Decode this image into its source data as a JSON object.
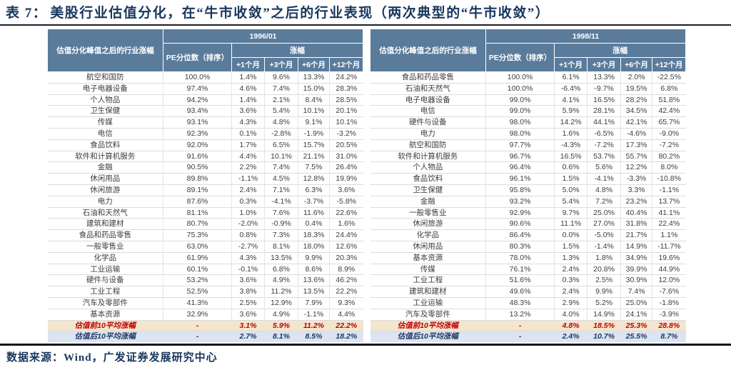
{
  "title": {
    "prefix": "表 7：",
    "text": "美股行业估值分化，在“牛市收敛”之后的行业表现（两次典型的“牛市收敛”）"
  },
  "footer": {
    "source_label": "数据来源：",
    "source_text": "Wind，广发证券发展研究中心"
  },
  "colors": {
    "header_bg": "#5b7b9b",
    "summary_top_bg": "#f3e6cd",
    "summary_top_text": "#c00000",
    "summary_bottom_bg": "#dbe4f2",
    "summary_bottom_text": "#1f3864",
    "title_text": "#17365d"
  },
  "tables": [
    {
      "period": "1996/01",
      "col_industry": "估值分化峰值之后的行业涨幅",
      "col_pe": "PE分位数（排序）",
      "col_change": "涨幅",
      "months": [
        "+1个月",
        "+3个月",
        "+6个月",
        "+12个月"
      ],
      "rows": [
        {
          "industry": "航空和国防",
          "pe": "100.0%",
          "values": [
            "1.4%",
            "9.6%",
            "13.3%",
            "24.2%"
          ]
        },
        {
          "industry": "电子电器设备",
          "pe": "97.4%",
          "values": [
            "4.6%",
            "7.4%",
            "15.0%",
            "28.3%"
          ]
        },
        {
          "industry": "个人物品",
          "pe": "94.2%",
          "values": [
            "1.4%",
            "2.1%",
            "8.4%",
            "28.5%"
          ]
        },
        {
          "industry": "卫生保健",
          "pe": "93.4%",
          "values": [
            "3.6%",
            "5.4%",
            "10.1%",
            "20.1%"
          ]
        },
        {
          "industry": "传媒",
          "pe": "93.1%",
          "values": [
            "4.3%",
            "4.8%",
            "9.1%",
            "10.1%"
          ]
        },
        {
          "industry": "电信",
          "pe": "92.3%",
          "values": [
            "0.1%",
            "-2.8%",
            "-1.9%",
            "-3.2%"
          ]
        },
        {
          "industry": "食品饮料",
          "pe": "92.0%",
          "values": [
            "1.7%",
            "6.5%",
            "15.7%",
            "20.5%"
          ]
        },
        {
          "industry": "软件和计算机服务",
          "pe": "91.6%",
          "values": [
            "4.4%",
            "10.1%",
            "21.1%",
            "31.0%"
          ]
        },
        {
          "industry": "金融",
          "pe": "90.5%",
          "values": [
            "2.2%",
            "7.4%",
            "7.5%",
            "26.4%"
          ]
        },
        {
          "industry": "休闲用品",
          "pe": "89.8%",
          "values": [
            "-1.1%",
            "4.5%",
            "12.8%",
            "19.9%"
          ]
        },
        {
          "industry": "休闲旅游",
          "pe": "89.1%",
          "values": [
            "2.4%",
            "7.1%",
            "6.3%",
            "3.6%"
          ]
        },
        {
          "industry": "电力",
          "pe": "87.6%",
          "values": [
            "0.3%",
            "-4.1%",
            "-3.7%",
            "-5.8%"
          ]
        },
        {
          "industry": "石油和天然气",
          "pe": "81.1%",
          "values": [
            "1.0%",
            "7.6%",
            "11.6%",
            "22.6%"
          ]
        },
        {
          "industry": "建筑和建材",
          "pe": "80.7%",
          "values": [
            "-2.0%",
            "-0.9%",
            "0.4%",
            "1.6%"
          ]
        },
        {
          "industry": "食品和药品零售",
          "pe": "75.3%",
          "values": [
            "0.8%",
            "7.3%",
            "18.3%",
            "24.4%"
          ]
        },
        {
          "industry": "一般零售业",
          "pe": "63.0%",
          "values": [
            "-2.7%",
            "8.1%",
            "18.0%",
            "12.6%"
          ]
        },
        {
          "industry": "化学品",
          "pe": "61.9%",
          "values": [
            "4.3%",
            "13.5%",
            "9.9%",
            "20.3%"
          ]
        },
        {
          "industry": "工业运输",
          "pe": "60.1%",
          "values": [
            "-0.1%",
            "6.8%",
            "8.6%",
            "8.9%"
          ]
        },
        {
          "industry": "硬件与设备",
          "pe": "53.2%",
          "values": [
            "3.6%",
            "4.9%",
            "13.6%",
            "46.2%"
          ]
        },
        {
          "industry": "工业工程",
          "pe": "52.5%",
          "values": [
            "3.8%",
            "11.2%",
            "13.5%",
            "22.2%"
          ]
        },
        {
          "industry": "汽车及零部件",
          "pe": "41.3%",
          "values": [
            "2.5%",
            "12.9%",
            "7.9%",
            "9.3%"
          ]
        },
        {
          "industry": "基本资源",
          "pe": "32.9%",
          "values": [
            "3.6%",
            "4.9%",
            "-1.1%",
            "4.4%"
          ]
        }
      ],
      "summary": [
        {
          "label": "估值前10平均涨幅",
          "pe": "-",
          "values": [
            "3.1%",
            "5.9%",
            "11.2%",
            "22.2%"
          ],
          "style": "top"
        },
        {
          "label": "估值后10平均涨幅",
          "pe": "-",
          "values": [
            "2.7%",
            "8.1%",
            "8.5%",
            "18.2%"
          ],
          "style": "bottom"
        }
      ]
    },
    {
      "period": "1998/11",
      "col_industry": "估值分化峰值之后的行业涨幅",
      "col_pe": "PE分位数（排序）",
      "col_change": "涨幅",
      "months": [
        "+1个月",
        "+3个月",
        "+6个月",
        "+12个月"
      ],
      "rows": [
        {
          "industry": "食品和药品零售",
          "pe": "100.0%",
          "values": [
            "6.1%",
            "13.3%",
            "2.0%",
            "-22.5%"
          ]
        },
        {
          "industry": "石油和天然气",
          "pe": "100.0%",
          "values": [
            "-6.4%",
            "-9.7%",
            "19.5%",
            "6.8%"
          ]
        },
        {
          "industry": "电子电器设备",
          "pe": "99.0%",
          "values": [
            "4.1%",
            "16.5%",
            "28.2%",
            "51.8%"
          ]
        },
        {
          "industry": "电信",
          "pe": "99.0%",
          "values": [
            "5.9%",
            "28.1%",
            "34.5%",
            "42.4%"
          ]
        },
        {
          "industry": "硬件与设备",
          "pe": "98.0%",
          "values": [
            "14.2%",
            "44.1%",
            "42.1%",
            "65.7%"
          ]
        },
        {
          "industry": "电力",
          "pe": "98.0%",
          "values": [
            "1.6%",
            "-6.5%",
            "-4.6%",
            "-9.0%"
          ]
        },
        {
          "industry": "航空和国防",
          "pe": "97.7%",
          "values": [
            "-4.3%",
            "-7.2%",
            "17.3%",
            "-7.2%"
          ]
        },
        {
          "industry": "软件和计算机服务",
          "pe": "96.7%",
          "values": [
            "16.5%",
            "53.7%",
            "55.7%",
            "80.2%"
          ]
        },
        {
          "industry": "个人物品",
          "pe": "96.4%",
          "values": [
            "0.6%",
            "5.6%",
            "12.2%",
            "8.0%"
          ]
        },
        {
          "industry": "食品饮料",
          "pe": "96.1%",
          "values": [
            "1.5%",
            "-4.1%",
            "-3.3%",
            "-10.8%"
          ]
        },
        {
          "industry": "卫生保健",
          "pe": "95.8%",
          "values": [
            "5.0%",
            "4.8%",
            "3.3%",
            "-1.1%"
          ]
        },
        {
          "industry": "金融",
          "pe": "93.2%",
          "values": [
            "5.4%",
            "7.2%",
            "23.2%",
            "13.7%"
          ]
        },
        {
          "industry": "一般零售业",
          "pe": "92.9%",
          "values": [
            "9.7%",
            "25.0%",
            "40.4%",
            "41.1%"
          ]
        },
        {
          "industry": "休闲旅游",
          "pe": "90.6%",
          "values": [
            "11.1%",
            "27.0%",
            "31.8%",
            "22.4%"
          ]
        },
        {
          "industry": "化学品",
          "pe": "86.4%",
          "values": [
            "0.0%",
            "-5.0%",
            "21.7%",
            "1.1%"
          ]
        },
        {
          "industry": "休闲用品",
          "pe": "80.3%",
          "values": [
            "1.5%",
            "-1.4%",
            "14.9%",
            "-11.7%"
          ]
        },
        {
          "industry": "基本资源",
          "pe": "78.0%",
          "values": [
            "1.3%",
            "1.8%",
            "34.9%",
            "19.6%"
          ]
        },
        {
          "industry": "传媒",
          "pe": "76.1%",
          "values": [
            "2.4%",
            "20.8%",
            "39.9%",
            "44.9%"
          ]
        },
        {
          "industry": "工业工程",
          "pe": "51.6%",
          "values": [
            "0.3%",
            "2.5%",
            "30.9%",
            "12.0%"
          ]
        },
        {
          "industry": "建筑和建材",
          "pe": "49.6%",
          "values": [
            "2.4%",
            "9.9%",
            "7.4%",
            "-7.6%"
          ]
        },
        {
          "industry": "工业运输",
          "pe": "48.3%",
          "values": [
            "2.9%",
            "5.2%",
            "25.0%",
            "-1.8%"
          ]
        },
        {
          "industry": "汽车及零部件",
          "pe": "13.2%",
          "values": [
            "4.0%",
            "14.9%",
            "24.1%",
            "-3.9%"
          ]
        }
      ],
      "summary": [
        {
          "label": "估值前10平均涨幅",
          "pe": "-",
          "values": [
            "4.8%",
            "18.5%",
            "25.3%",
            "28.8%"
          ],
          "style": "top"
        },
        {
          "label": "估值后10平均涨幅",
          "pe": "-",
          "values": [
            "2.4%",
            "10.7%",
            "25.5%",
            "8.7%"
          ],
          "style": "bottom"
        }
      ]
    }
  ]
}
